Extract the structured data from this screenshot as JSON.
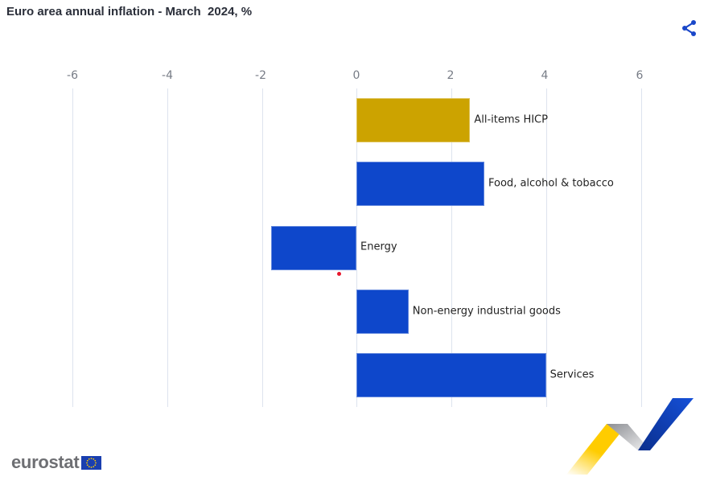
{
  "header": {
    "title": "Euro area annual inflation - March  2024, %",
    "share_icon": "share-icon"
  },
  "axis": {
    "ticks": [
      "-6",
      "-4",
      "-2",
      "0",
      "2",
      "4",
      "6"
    ]
  },
  "bars": [
    {
      "label": "All-items HICP",
      "value": 2.4,
      "color": "#cca300"
    },
    {
      "label": "Food, alcohol & tobacco",
      "value": 2.7,
      "color": "#0e47cb"
    },
    {
      "label": "Energy",
      "value": -1.8,
      "color": "#0e47cb"
    },
    {
      "label": "Non-energy industrial goods",
      "value": 1.1,
      "color": "#0e47cb"
    },
    {
      "label": "Services",
      "value": 4.0,
      "color": "#0e47cb"
    }
  ],
  "footer": {
    "logo_text": "eurostat"
  },
  "chart_data": {
    "type": "bar",
    "orientation": "horizontal",
    "title": "Euro area annual inflation - March  2024, %",
    "categories": [
      "All-items HICP",
      "Food, alcohol & tobacco",
      "Energy",
      "Non-energy industrial goods",
      "Services"
    ],
    "values": [
      2.4,
      2.7,
      -1.8,
      1.1,
      4.0
    ],
    "colors": [
      "#cca300",
      "#0e47cb",
      "#0e47cb",
      "#0e47cb",
      "#0e47cb"
    ],
    "xlabel": "",
    "ylabel": "",
    "xlim": [
      -6,
      6
    ],
    "xticks": [
      -6,
      -4,
      -2,
      0,
      2,
      4,
      6
    ],
    "grid": true,
    "legend": "none",
    "data_labels": "category name placed at bar end"
  }
}
